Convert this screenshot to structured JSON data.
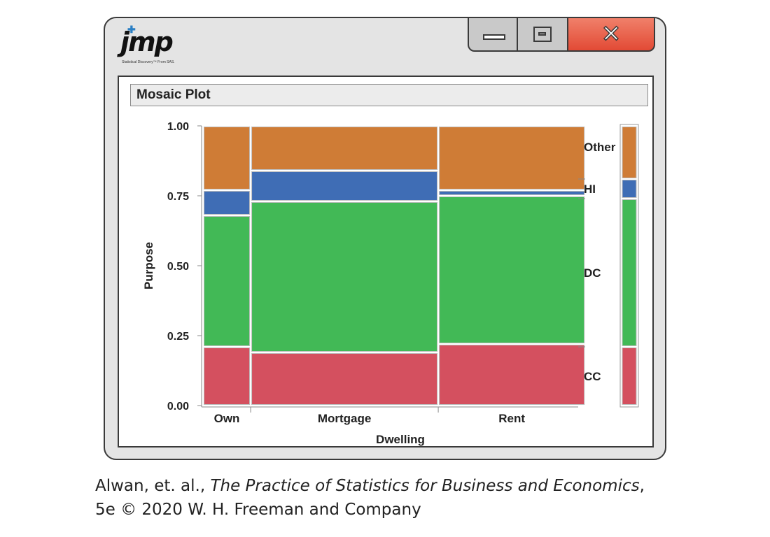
{
  "window": {
    "logo_text": "jmp",
    "logo_tagline": "Statistical Discovery™ From SAS.",
    "colors": {
      "frame": "#e4e4e4",
      "close": "#e24a35"
    }
  },
  "panel": {
    "title": "Mosaic Plot"
  },
  "chart_data": {
    "type": "mosaic",
    "title": "Mosaic Plot",
    "xlabel": "Dwelling",
    "ylabel": "Purpose",
    "categories": [
      "Own",
      "Mortgage",
      "Rent"
    ],
    "category_widths": [
      0.127,
      0.5,
      0.392
    ],
    "y_ticks": [
      "0.00",
      "0.25",
      "0.50",
      "0.75",
      "1.00"
    ],
    "ylim": [
      0,
      1
    ],
    "series": [
      {
        "name": "CC",
        "color": "#d4505f",
        "values": [
          0.21,
          0.19,
          0.22
        ]
      },
      {
        "name": "DC",
        "color": "#42b956",
        "values": [
          0.47,
          0.54,
          0.53
        ]
      },
      {
        "name": "HI",
        "color": "#3f6db5",
        "values": [
          0.09,
          0.11,
          0.02
        ]
      },
      {
        "name": "Other",
        "color": "#cf7c36",
        "values": [
          0.23,
          0.16,
          0.23
        ]
      }
    ],
    "marginal": [
      0.21,
      0.53,
      0.07,
      0.19
    ]
  },
  "caption": {
    "line1_prefix": "Alwan, et. al., ",
    "line1_title": "The Practice of Statistics for Business and Economics",
    "line1_suffix": ",",
    "line2": "5e © 2020 W. H. Freeman and Company"
  }
}
